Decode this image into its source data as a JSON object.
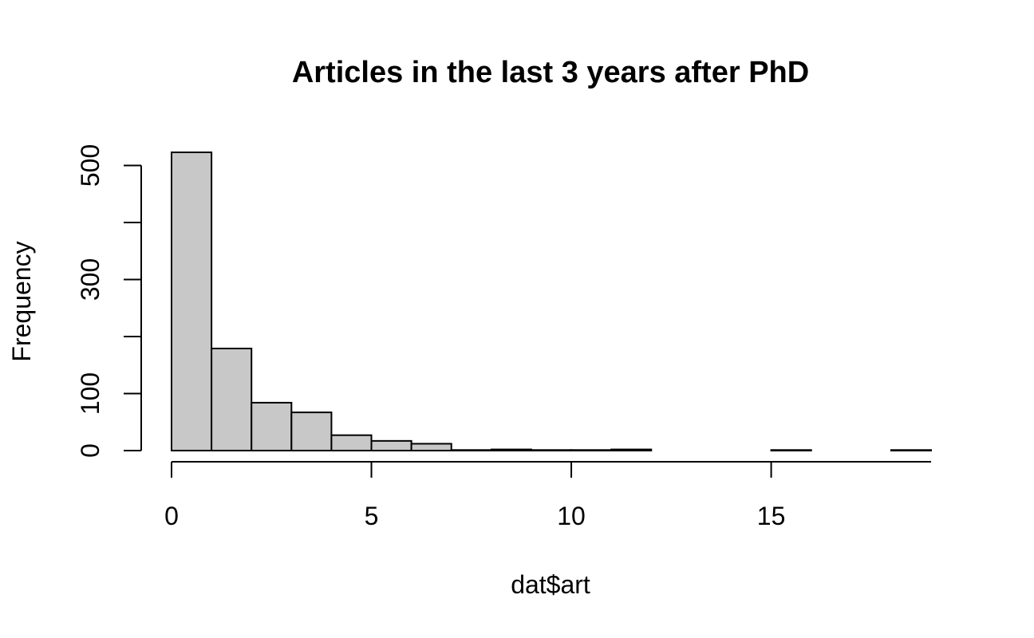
{
  "chart_data": {
    "type": "bar",
    "subtype": "histogram",
    "title": "Articles in the last 3 years after PhD",
    "xlabel": "dat$art",
    "ylabel": "Frequency",
    "bin_edges": [
      0,
      1,
      2,
      3,
      4,
      5,
      6,
      7,
      8,
      9,
      10,
      11,
      12,
      13,
      14,
      15,
      16,
      17,
      18,
      19
    ],
    "values": [
      523,
      179,
      84,
      67,
      27,
      17,
      12,
      1,
      2,
      1,
      1,
      2,
      0,
      0,
      0,
      1,
      0,
      0,
      1
    ],
    "xlim": [
      0,
      19
    ],
    "ylim": [
      0,
      523
    ],
    "x_ticks": [
      0,
      5,
      10,
      15
    ],
    "x_tick_labels": [
      "0",
      "5",
      "10",
      "15"
    ],
    "y_ticks": [
      0,
      100,
      200,
      300,
      400,
      500
    ],
    "y_tick_labels": [
      "0",
      "100",
      "",
      "300",
      "",
      "500"
    ],
    "bar_fill": "#c8c8c8",
    "bar_stroke": "#000000",
    "grid": false,
    "legend": "none"
  }
}
